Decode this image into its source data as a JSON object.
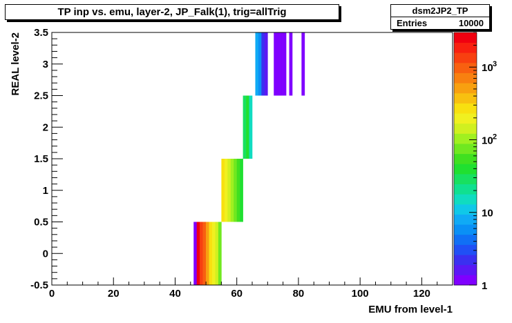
{
  "window": {
    "title": "TP inp vs. emu, layer-2, JP_Falk(1), trig=allTrig"
  },
  "stats": {
    "name": "dsm2JP2_TP",
    "entries_label": "Entries",
    "entries_value": "10000"
  },
  "chart_data": {
    "type": "heatmap",
    "title": "TP inp vs. emu, layer-2, JP_Falk(1), trig=allTrig",
    "xlabel": "EMU from level-1",
    "ylabel": "REAL level-2",
    "xlim": [
      0,
      130
    ],
    "ylim": [
      -0.5,
      3.5
    ],
    "x_ticks": [
      {
        "value": 0,
        "label": "0"
      },
      {
        "value": 20,
        "label": "20"
      },
      {
        "value": 40,
        "label": "40"
      },
      {
        "value": 60,
        "label": "60"
      },
      {
        "value": 80,
        "label": "80"
      },
      {
        "value": 100,
        "label": "100"
      },
      {
        "value": 120,
        "label": "120"
      }
    ],
    "y_ticks": [
      {
        "value": -0.5,
        "label": "-0.5"
      },
      {
        "value": 0,
        "label": "0"
      },
      {
        "value": 0.5,
        "label": "0.5"
      },
      {
        "value": 1,
        "label": "1"
      },
      {
        "value": 1.5,
        "label": "1.5"
      },
      {
        "value": 2,
        "label": "2"
      },
      {
        "value": 2.5,
        "label": "2.5"
      },
      {
        "value": 3,
        "label": "3"
      },
      {
        "value": 3.5,
        "label": "3.5"
      }
    ],
    "z_scale": "log",
    "zlim": [
      1,
      3000
    ],
    "z_ticks": [
      {
        "value": 1,
        "label": "1"
      },
      {
        "value": 10,
        "label": "10"
      },
      {
        "value": 100,
        "label": "10",
        "exponent": "2"
      },
      {
        "value": 1000,
        "label": "10",
        "exponent": "3"
      }
    ],
    "palette": [
      "#7f00ff",
      "#5a18f5",
      "#3a30f0",
      "#2050f5",
      "#1070f5",
      "#0a90f5",
      "#10aaf5",
      "#10c8e8",
      "#10dcc0",
      "#10e090",
      "#18e060",
      "#20e030",
      "#40e020",
      "#70e820",
      "#a0f020",
      "#d0f020",
      "#f0f020",
      "#f8e010",
      "#f8c010",
      "#f8a010",
      "#f88010",
      "#f86010",
      "#f84010",
      "#f82010",
      "#f00010"
    ],
    "cells": [
      {
        "x0": 46,
        "x1": 47,
        "y0": -0.5,
        "y1": 0.5,
        "z": 1
      },
      {
        "x0": 47,
        "x1": 48,
        "y0": -0.5,
        "y1": 0.5,
        "z": 2500
      },
      {
        "x0": 48,
        "x1": 49,
        "y0": -0.5,
        "y1": 0.5,
        "z": 1500
      },
      {
        "x0": 49,
        "x1": 50,
        "y0": -0.5,
        "y1": 0.5,
        "z": 900
      },
      {
        "x0": 50,
        "x1": 51,
        "y0": -0.5,
        "y1": 0.5,
        "z": 500
      },
      {
        "x0": 51,
        "x1": 52,
        "y0": -0.5,
        "y1": 0.5,
        "z": 300
      },
      {
        "x0": 52,
        "x1": 53,
        "y0": -0.5,
        "y1": 0.5,
        "z": 200
      },
      {
        "x0": 53,
        "x1": 54,
        "y0": -0.5,
        "y1": 0.5,
        "z": 150
      },
      {
        "x0": 54,
        "x1": 55,
        "y0": -0.5,
        "y1": 0.5,
        "z": 80
      },
      {
        "x0": 55,
        "x1": 56,
        "y0": 0.5,
        "y1": 1.5,
        "z": 300
      },
      {
        "x0": 56,
        "x1": 57,
        "y0": 0.5,
        "y1": 1.5,
        "z": 220
      },
      {
        "x0": 57,
        "x1": 58,
        "y0": 0.5,
        "y1": 1.5,
        "z": 150
      },
      {
        "x0": 58,
        "x1": 59,
        "y0": 0.5,
        "y1": 1.5,
        "z": 110
      },
      {
        "x0": 59,
        "x1": 60,
        "y0": 0.5,
        "y1": 1.5,
        "z": 70
      },
      {
        "x0": 60,
        "x1": 61,
        "y0": 0.5,
        "y1": 1.5,
        "z": 50
      },
      {
        "x0": 61,
        "x1": 62,
        "y0": 0.5,
        "y1": 1.5,
        "z": 40
      },
      {
        "x0": 62,
        "x1": 63,
        "y0": 1.5,
        "y1": 2.5,
        "z": 25
      },
      {
        "x0": 63,
        "x1": 64,
        "y0": 1.5,
        "y1": 2.5,
        "z": 45
      },
      {
        "x0": 64,
        "x1": 65,
        "y0": 1.5,
        "y1": 2.5,
        "z": 15
      },
      {
        "x0": 66,
        "x1": 67,
        "y0": 2.5,
        "y1": 3.5,
        "z": 7
      },
      {
        "x0": 67,
        "x1": 68,
        "y0": 2.5,
        "y1": 3.5,
        "z": 6
      },
      {
        "x0": 68,
        "x1": 69,
        "y0": 2.5,
        "y1": 3.5,
        "z": 2
      },
      {
        "x0": 69,
        "x1": 70,
        "y0": 2.5,
        "y1": 3.5,
        "z": 1.5
      },
      {
        "x0": 72,
        "x1": 73,
        "y0": 2.5,
        "y1": 3.5,
        "z": 1
      },
      {
        "x0": 73,
        "x1": 74,
        "y0": 2.5,
        "y1": 3.5,
        "z": 1.2
      },
      {
        "x0": 74,
        "x1": 75,
        "y0": 2.5,
        "y1": 3.5,
        "z": 1
      },
      {
        "x0": 75,
        "x1": 76,
        "y0": 2.5,
        "y1": 3.5,
        "z": 1.3
      },
      {
        "x0": 77,
        "x1": 78,
        "y0": 2.5,
        "y1": 3.5,
        "z": 1
      },
      {
        "x0": 81,
        "x1": 82,
        "y0": 2.5,
        "y1": 3.5,
        "z": 1
      }
    ]
  }
}
